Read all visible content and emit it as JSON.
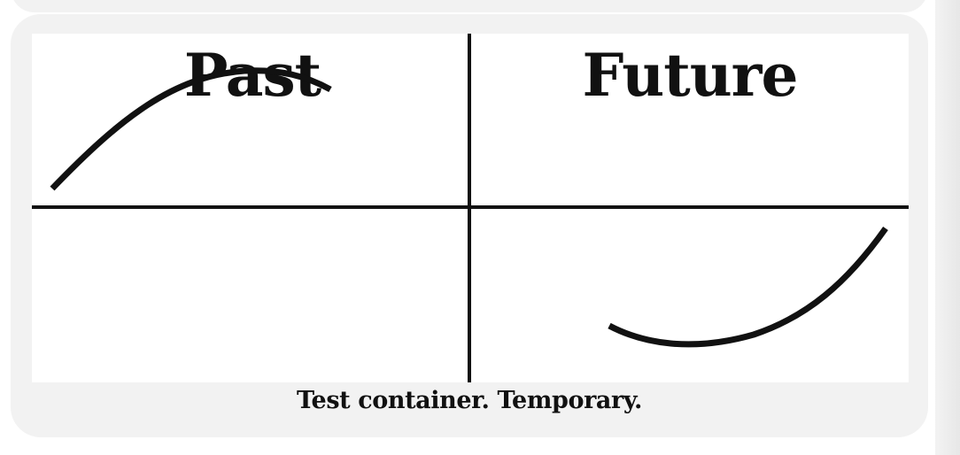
{
  "diagram": {
    "quadrant_labels": {
      "top_left": "Past",
      "top_right": "Future"
    },
    "top_left_label_struck_through": true,
    "caption": "Test container. Temporary."
  },
  "colors": {
    "card_background": "#f2f2f2",
    "figure_background": "#ffffff",
    "ink": "#111111"
  }
}
